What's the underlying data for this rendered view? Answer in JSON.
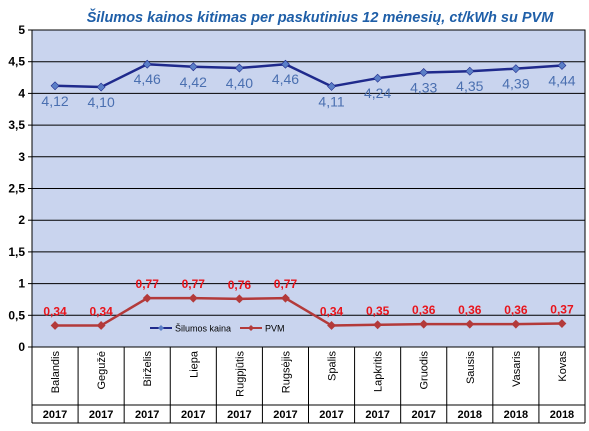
{
  "chart_data": {
    "type": "line",
    "title": "Šilumos kainos kitimas per paskutinius 12 mėnesių, ct/kWh su PVM",
    "categories": [
      "Balandis",
      "Gegužė",
      "Birželis",
      "Liepa",
      "Rugpjūtis",
      "Rugsėjis",
      "Spalis",
      "Lapkritis",
      "Gruodis",
      "Sausis",
      "Vasaris",
      "Kovas"
    ],
    "years": [
      "2017",
      "2017",
      "2017",
      "2017",
      "2017",
      "2017",
      "2017",
      "2017",
      "2017",
      "2018",
      "2018",
      "2018"
    ],
    "y_ticks": [
      "0",
      "0,5",
      "1",
      "1,5",
      "2",
      "2,5",
      "3",
      "3,5",
      "4",
      "4,5",
      "5"
    ],
    "ylim": [
      0,
      5
    ],
    "grid": true,
    "legend_position": "lower-left inside plot",
    "series": [
      {
        "name": "Šilumos kaina",
        "color": "#1f2a8c",
        "marker_color": "#5b7fc7",
        "label_color": "#4a6fb0",
        "values": [
          4.12,
          4.1,
          4.46,
          4.42,
          4.4,
          4.46,
          4.11,
          4.24,
          4.33,
          4.35,
          4.39,
          4.44
        ],
        "labels": [
          "4,12",
          "4,10",
          "4,46",
          "4,42",
          "4,40",
          "4,46",
          "4,11",
          "4,24",
          "4,33",
          "4,35",
          "4,39",
          "4,44"
        ]
      },
      {
        "name": "PVM",
        "color": "#b33a3a",
        "marker_color": "#b33a3a",
        "label_color": "#e8141b",
        "values": [
          0.34,
          0.34,
          0.77,
          0.77,
          0.76,
          0.77,
          0.34,
          0.35,
          0.36,
          0.36,
          0.36,
          0.37
        ],
        "labels": [
          "0,34",
          "0,34",
          "0,77",
          "0,77",
          "0,76",
          "0,77",
          "0,34",
          "0,35",
          "0,36",
          "0,36",
          "0,36",
          "0,37"
        ]
      }
    ],
    "colors": {
      "title": "#1f5fa8",
      "plot_bg": "#c9d4ee",
      "grid": "#000000"
    }
  }
}
